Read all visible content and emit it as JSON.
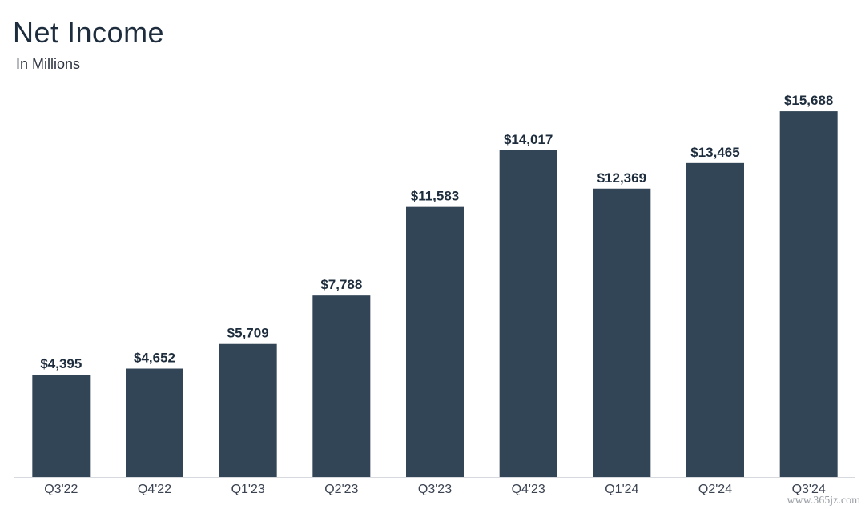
{
  "title": "Net Income",
  "subtitle": "In Millions",
  "watermark": "www.365jz.com",
  "colors": {
    "bar": "#324556",
    "text": "#1e2d3d",
    "axis": "#d6d9dd"
  },
  "chart_data": {
    "type": "bar",
    "title": "Net Income",
    "subtitle": "In Millions",
    "categories": [
      "Q3'22",
      "Q4'22",
      "Q1'23",
      "Q2'23",
      "Q3'23",
      "Q4'23",
      "Q1'24",
      "Q2'24",
      "Q3'24"
    ],
    "values": [
      4395,
      4652,
      5709,
      7788,
      11583,
      14017,
      12369,
      13465,
      15688
    ],
    "data_labels": [
      "$4,395",
      "$4,652",
      "$5,709",
      "$7,788",
      "$11,583",
      "$14,017",
      "$12,369",
      "$13,465",
      "$15,688"
    ],
    "xlabel": "",
    "ylabel": "",
    "ylim": [
      0,
      16000
    ],
    "grid": false,
    "legend": "none"
  }
}
